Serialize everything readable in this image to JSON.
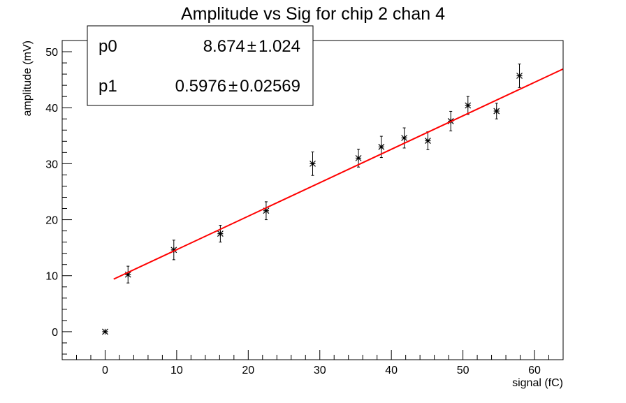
{
  "chart_data": {
    "type": "scatter",
    "title": "Amplitude vs Sig for chip 2 chan 4",
    "xlabel": "signal (fC)",
    "ylabel": "amplitude (mV)",
    "xlim": [
      -6,
      64
    ],
    "ylim": [
      -5,
      52
    ],
    "xticks": [
      0,
      10,
      20,
      30,
      40,
      50,
      60
    ],
    "yticks": [
      0,
      10,
      20,
      30,
      40,
      50
    ],
    "grid": false,
    "points": [
      {
        "x": 0,
        "y": 0,
        "err": 0
      },
      {
        "x": 3.2,
        "y": 10.2,
        "err": 1.5
      },
      {
        "x": 9.6,
        "y": 14.6,
        "err": 1.75
      },
      {
        "x": 16.1,
        "y": 17.5,
        "err": 1.5
      },
      {
        "x": 22.5,
        "y": 21.6,
        "err": 1.6
      },
      {
        "x": 29.0,
        "y": 30.0,
        "err": 2.1
      },
      {
        "x": 35.4,
        "y": 31.0,
        "err": 1.6
      },
      {
        "x": 38.6,
        "y": 33.0,
        "err": 1.9
      },
      {
        "x": 41.8,
        "y": 34.6,
        "err": 1.8
      },
      {
        "x": 45.1,
        "y": 34.1,
        "err": 1.6
      },
      {
        "x": 48.3,
        "y": 37.6,
        "err": 1.75
      },
      {
        "x": 50.7,
        "y": 40.4,
        "err": 1.6
      },
      {
        "x": 54.7,
        "y": 39.4,
        "err": 1.4
      },
      {
        "x": 57.9,
        "y": 45.7,
        "err": 2.1
      }
    ],
    "fit": {
      "p0": 8.674,
      "p1": 0.5976,
      "x_range": [
        1.2,
        64
      ],
      "color": "#ff0000"
    },
    "stats_box": {
      "rows": [
        {
          "name": "p0",
          "value": "8.674",
          "pm": "±",
          "error": "1.024"
        },
        {
          "name": "p1",
          "value": "0.5976",
          "pm": "±",
          "error": "0.02569"
        }
      ],
      "placement": "top-left"
    }
  }
}
